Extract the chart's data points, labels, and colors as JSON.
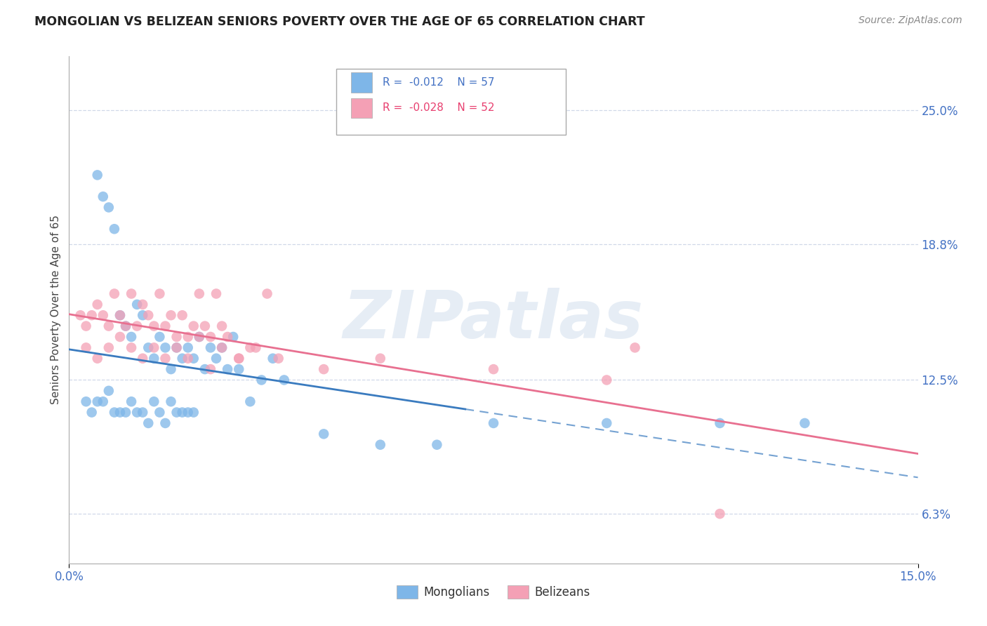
{
  "title": "MONGOLIAN VS BELIZEAN SENIORS POVERTY OVER THE AGE OF 65 CORRELATION CHART",
  "source": "Source: ZipAtlas.com",
  "ylabel": "Seniors Poverty Over the Age of 65",
  "xlim": [
    0.0,
    15.0
  ],
  "ylim": [
    4.0,
    27.5
  ],
  "yticks": [
    6.3,
    12.5,
    18.8,
    25.0
  ],
  "xtick_labels": [
    "0.0%",
    "15.0%"
  ],
  "ytick_labels": [
    "6.3%",
    "12.5%",
    "18.8%",
    "25.0%"
  ],
  "mongolian_color": "#7eb6e8",
  "belizean_color": "#f4a0b5",
  "mongolian_line_color": "#3a7bbf",
  "belizean_line_color": "#e87090",
  "legend_R_mongolian": "R =  -0.012",
  "legend_N_mongolian": "N = 57",
  "legend_R_belizean": "R =  -0.028",
  "legend_N_belizean": "N = 52",
  "mongolian_x": [
    0.5,
    0.6,
    0.7,
    0.8,
    0.9,
    1.0,
    1.1,
    1.2,
    1.3,
    1.4,
    1.5,
    1.6,
    1.7,
    1.8,
    1.9,
    2.0,
    2.1,
    2.2,
    2.3,
    2.4,
    2.5,
    2.6,
    2.7,
    2.8,
    2.9,
    3.0,
    3.2,
    3.4,
    3.6,
    3.8,
    0.3,
    0.4,
    0.5,
    0.6,
    0.7,
    0.8,
    0.9,
    1.0,
    1.1,
    1.2,
    1.3,
    1.4,
    1.5,
    1.6,
    1.7,
    1.8,
    1.9,
    2.0,
    2.1,
    2.2,
    4.5,
    5.5,
    6.5,
    7.5,
    9.5,
    11.5,
    13.0
  ],
  "mongolian_y": [
    22.0,
    21.0,
    20.5,
    19.5,
    15.5,
    15.0,
    14.5,
    16.0,
    15.5,
    14.0,
    13.5,
    14.5,
    14.0,
    13.0,
    14.0,
    13.5,
    14.0,
    13.5,
    14.5,
    13.0,
    14.0,
    13.5,
    14.0,
    13.0,
    14.5,
    13.0,
    11.5,
    12.5,
    13.5,
    12.5,
    11.5,
    11.0,
    11.5,
    11.5,
    12.0,
    11.0,
    11.0,
    11.0,
    11.5,
    11.0,
    11.0,
    10.5,
    11.5,
    11.0,
    10.5,
    11.5,
    11.0,
    11.0,
    11.0,
    11.0,
    10.0,
    9.5,
    9.5,
    10.5,
    10.5,
    10.5,
    10.5
  ],
  "belizean_x": [
    0.2,
    0.3,
    0.4,
    0.5,
    0.6,
    0.7,
    0.8,
    0.9,
    1.0,
    1.1,
    1.2,
    1.3,
    1.4,
    1.5,
    1.6,
    1.7,
    1.8,
    1.9,
    2.0,
    2.1,
    2.2,
    2.3,
    2.4,
    2.5,
    2.6,
    2.7,
    2.8,
    3.0,
    3.2,
    3.5,
    0.3,
    0.5,
    0.7,
    0.9,
    1.1,
    1.3,
    1.5,
    1.7,
    1.9,
    2.1,
    2.3,
    2.5,
    2.7,
    3.0,
    3.3,
    3.7,
    4.5,
    5.5,
    7.5,
    9.5,
    10.0,
    11.5
  ],
  "belizean_y": [
    15.5,
    15.0,
    15.5,
    16.0,
    15.5,
    15.0,
    16.5,
    15.5,
    15.0,
    16.5,
    15.0,
    16.0,
    15.5,
    15.0,
    16.5,
    15.0,
    15.5,
    14.5,
    15.5,
    14.5,
    15.0,
    16.5,
    15.0,
    14.5,
    16.5,
    15.0,
    14.5,
    13.5,
    14.0,
    16.5,
    14.0,
    13.5,
    14.0,
    14.5,
    14.0,
    13.5,
    14.0,
    13.5,
    14.0,
    13.5,
    14.5,
    13.0,
    14.0,
    13.5,
    14.0,
    13.5,
    13.0,
    13.5,
    13.0,
    12.5,
    14.0,
    6.3
  ],
  "watermark_text": "ZIPatlas",
  "background_color": "#ffffff",
  "grid_color": "#d0d8e8",
  "blue_solid_end": 7.0
}
